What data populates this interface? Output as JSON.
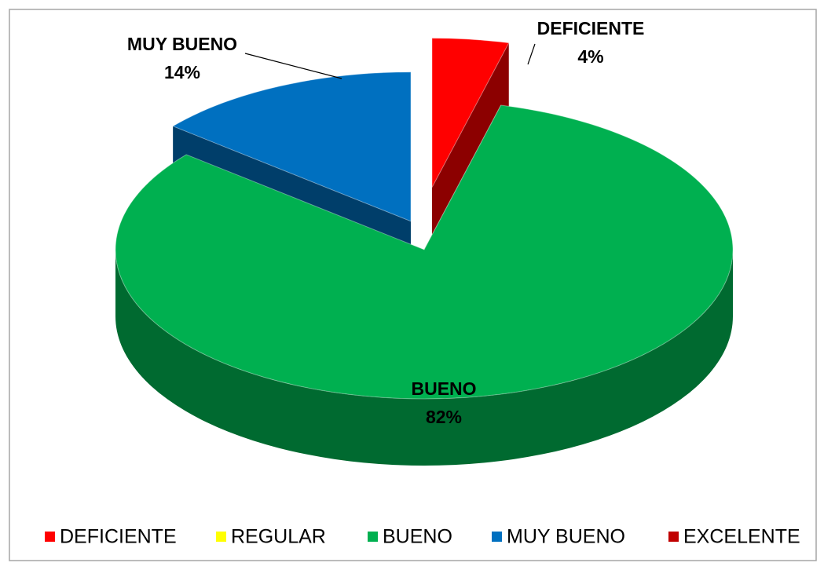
{
  "chart_data": {
    "type": "pie",
    "categories": [
      "DEFICIENTE",
      "REGULAR",
      "BUENO",
      "MUY BUENO",
      "EXCELENTE"
    ],
    "values": [
      4,
      0,
      82,
      14,
      0
    ],
    "value_labels": [
      "4%",
      null,
      "82%",
      "14%",
      null
    ],
    "colors": [
      "#ff0000",
      "#ffff00",
      "#00b050",
      "#0070c0",
      "#c00000"
    ],
    "legend": "bottom"
  }
}
